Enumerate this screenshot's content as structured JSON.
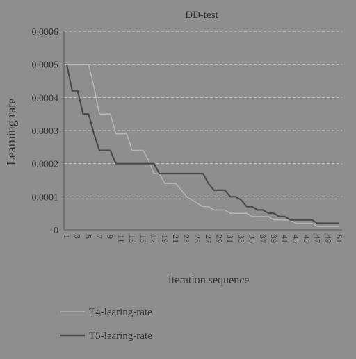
{
  "colors": {
    "background": "#8e8e8e",
    "axis": "#6a6a6a",
    "grid": "#c2c2c2",
    "text": "#353535",
    "series_t4": "#b4b4b4",
    "series_t5": "#4a4a4a"
  },
  "chart_data": {
    "type": "line",
    "title": "DD-test",
    "xlabel": "Iteration sequence",
    "ylabel": "Learning rate",
    "ylim": [
      0,
      0.0006
    ],
    "yticks": [
      "0.0006",
      "0.0005",
      "0.0004",
      "0.0003",
      "0.0002",
      "0.0001",
      "0"
    ],
    "ytick_values": [
      0.0006,
      0.0005,
      0.0004,
      0.0003,
      0.0002,
      0.0001,
      0
    ],
    "xticks": [
      "1",
      "3",
      "5",
      "7",
      "9",
      "11",
      "13",
      "15",
      "17",
      "19",
      "21",
      "23",
      "25",
      "27",
      "29",
      "31",
      "33",
      "35",
      "37",
      "39",
      "41",
      "43",
      "45",
      "47",
      "49",
      "51"
    ],
    "grid": true,
    "legend_position": "bottom-left",
    "series": [
      {
        "name": "T4-learing-rate",
        "color_key": "series_t4",
        "values": [
          0.0005,
          0.0005,
          0.0005,
          0.0005,
          0.0005,
          0.00043,
          0.00035,
          0.00035,
          0.00035,
          0.00029,
          0.00029,
          0.00029,
          0.00024,
          0.00024,
          0.00024,
          0.00021,
          0.00017,
          0.00017,
          0.00014,
          0.00014,
          0.00014,
          0.00012,
          0.0001,
          9e-05,
          8e-05,
          7e-05,
          7e-05,
          6e-05,
          6e-05,
          6e-05,
          5e-05,
          5e-05,
          5e-05,
          5e-05,
          4e-05,
          4e-05,
          4e-05,
          4e-05,
          3e-05,
          3e-05,
          3e-05,
          3e-05,
          2e-05,
          2e-05,
          2e-05,
          2e-05,
          1e-05,
          1e-05,
          1e-05,
          1e-05,
          1e-05
        ]
      },
      {
        "name": "T5-learing-rate",
        "color_key": "series_t5",
        "values": [
          0.0005,
          0.00042,
          0.00042,
          0.00035,
          0.00035,
          0.00029,
          0.00024,
          0.00024,
          0.00024,
          0.0002,
          0.0002,
          0.0002,
          0.0002,
          0.0002,
          0.0002,
          0.0002,
          0.0002,
          0.00017,
          0.00017,
          0.00017,
          0.00017,
          0.00017,
          0.00017,
          0.00017,
          0.00017,
          0.00017,
          0.00014,
          0.00012,
          0.00012,
          0.00012,
          0.0001,
          0.0001,
          9e-05,
          7e-05,
          7e-05,
          6e-05,
          6e-05,
          5e-05,
          5e-05,
          4e-05,
          4e-05,
          3e-05,
          3e-05,
          3e-05,
          3e-05,
          3e-05,
          2e-05,
          2e-05,
          2e-05,
          2e-05,
          2e-05
        ]
      }
    ]
  }
}
